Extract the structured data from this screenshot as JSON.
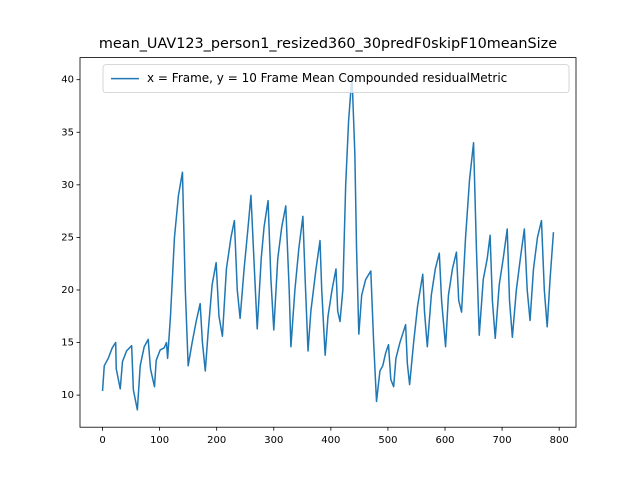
{
  "chart_data": {
    "type": "line",
    "title": "mean_UAV123_person1_resized360_30predF0skipF10meanSize",
    "x": [
      0,
      3,
      10,
      17,
      23,
      24,
      31,
      35,
      42,
      51,
      54,
      61,
      66,
      73,
      80,
      84,
      91,
      94,
      101,
      108,
      112,
      114,
      119,
      126,
      133,
      140,
      145,
      150,
      157,
      164,
      171,
      175,
      180,
      185,
      192,
      199,
      204,
      210,
      217,
      225,
      231,
      236,
      241,
      248,
      255,
      260,
      266,
      271,
      278,
      283,
      290,
      295,
      300,
      307,
      314,
      321,
      327,
      330,
      337,
      344,
      351,
      355,
      360,
      365,
      374,
      381,
      384,
      390,
      395,
      402,
      409,
      412,
      416,
      421,
      426,
      431,
      437,
      442,
      445,
      449,
      454,
      461,
      470,
      475,
      480,
      486,
      491,
      496,
      501,
      505,
      510,
      514,
      521,
      531,
      534,
      538,
      545,
      552,
      561,
      564,
      569,
      576,
      583,
      590,
      594,
      601,
      606,
      613,
      620,
      624,
      629,
      636,
      643,
      650,
      655,
      660,
      667,
      674,
      679,
      683,
      688,
      695,
      702,
      709,
      713,
      718,
      725,
      732,
      739,
      744,
      749,
      755,
      762,
      769,
      774,
      779,
      784,
      790
    ],
    "series": [
      {
        "name": "x = Frame, y = 10 Frame Mean Compounded residualMetric",
        "color": "#1f77b4",
        "values": [
          10.4,
          12.8,
          13.5,
          14.5,
          15.0,
          12.5,
          10.6,
          13.2,
          14.2,
          14.7,
          10.5,
          8.6,
          12.8,
          14.6,
          15.3,
          12.5,
          10.8,
          13.3,
          14.3,
          14.5,
          15.0,
          13.5,
          17.5,
          25,
          29,
          31.2,
          20,
          12.8,
          15,
          17,
          18.7,
          15,
          12.3,
          16,
          20.5,
          22.6,
          17.5,
          15.6,
          22,
          25,
          26.6,
          20,
          17.3,
          22,
          26,
          29,
          22,
          16.3,
          23,
          26,
          28.5,
          21,
          16.2,
          23,
          26,
          28,
          20,
          14.6,
          20,
          24,
          27,
          21,
          14.2,
          18,
          22,
          24.7,
          20,
          13.8,
          17.5,
          20,
          22,
          18,
          17,
          20,
          30,
          36,
          40.4,
          33,
          24,
          15.8,
          19.5,
          21,
          21.8,
          15,
          9.4,
          12.3,
          12.8,
          14,
          14.8,
          11.5,
          10.8,
          13.5,
          15,
          16.7,
          13,
          11,
          15,
          18.5,
          21.5,
          18,
          14.6,
          19.5,
          22,
          23.5,
          19,
          14.6,
          19.5,
          22,
          23.6,
          19,
          17.9,
          25,
          30.5,
          34,
          24,
          15.7,
          21,
          23,
          25.2,
          19,
          15.4,
          20.5,
          23,
          25.8,
          19,
          15.5,
          20,
          23,
          25.8,
          20,
          17.1,
          22,
          25,
          26.6,
          20,
          16.5,
          21,
          25.5
        ]
      }
    ],
    "xlim": [
      -39.5,
      829.5
    ],
    "ylim": [
      6.95,
      42.1
    ],
    "xticks": [
      0,
      100,
      200,
      300,
      400,
      500,
      600,
      700,
      800
    ],
    "yticks": [
      10,
      15,
      20,
      25,
      30,
      35,
      40
    ],
    "legend": "upper right"
  }
}
